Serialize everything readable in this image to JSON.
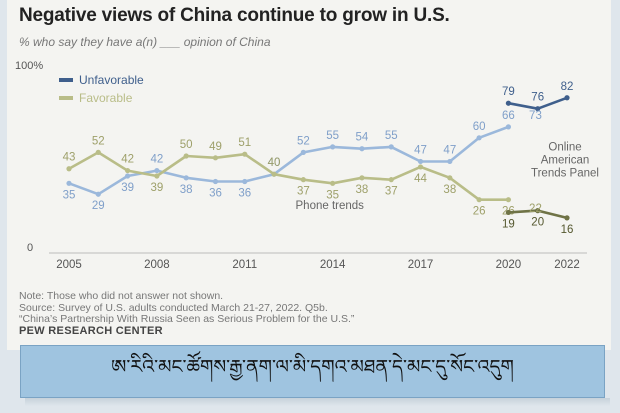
{
  "header": {
    "title": "Negative views of China continue to grow in U.S.",
    "subtitle": "% who say they have a(n) ___ opinion of China"
  },
  "chart_data": {
    "type": "line",
    "ylim": [
      0,
      100
    ],
    "y_tick_labels": [
      "100%",
      "0"
    ],
    "x_ticks": [
      2005,
      2008,
      2011,
      2014,
      2017,
      2020,
      2022
    ],
    "grid": false,
    "legend_position": "top-left",
    "colors": {
      "unfavorable": "#9bb8db",
      "unfavorable_online": "#3f5f8c",
      "favorable": "#b9bd88",
      "favorable_online": "#6f7346"
    },
    "series": [
      {
        "name": "Unfavorable",
        "x": [
          2005,
          2006,
          2007,
          2008,
          2009,
          2010,
          2011,
          2012,
          2013,
          2014,
          2015,
          2016,
          2017,
          2018,
          2019,
          2020
        ],
        "values": [
          35,
          29,
          39,
          42,
          38,
          36,
          36,
          40,
          52,
          55,
          54,
          55,
          47,
          47,
          60,
          66
        ]
      },
      {
        "name": "Favorable",
        "x": [
          2005,
          2006,
          2007,
          2008,
          2009,
          2010,
          2011,
          2012,
          2013,
          2014,
          2015,
          2016,
          2017,
          2018,
          2019,
          2020
        ],
        "values": [
          43,
          52,
          42,
          39,
          50,
          49,
          51,
          40,
          37,
          35,
          38,
          37,
          44,
          38,
          26,
          26
        ]
      },
      {
        "name": "Unfavorable (Online American Trends Panel)",
        "x": [
          2020,
          2021,
          2022
        ],
        "values": [
          79,
          76,
          82
        ]
      },
      {
        "name": "Favorable (Online American Trends Panel)",
        "x": [
          2020,
          2021,
          2022
        ],
        "values": [
          19,
          20,
          16
        ]
      }
    ],
    "overlap_labels": [
      {
        "x": 2020.5,
        "value": 73,
        "series": "Unfavorable"
      },
      {
        "x": 2020.5,
        "value": 22,
        "series": "Favorable"
      }
    ],
    "annotations": {
      "phone": "Phone trends",
      "online": [
        "Online",
        "American",
        "Trends Panel"
      ]
    },
    "legend": [
      "Unfavorable",
      "Favorable"
    ]
  },
  "footer": {
    "note": "Note: Those who did not answer not shown.",
    "source": "Source: Survey of U.S. adults conducted March 21-27, 2022. Q5b.",
    "report": "“China’s Partnership With Russia Seen as Serious Problem for the U.S.”",
    "org": "PEW RESEARCH CENTER"
  },
  "banner": {
    "text": "ཨ་རིའི་མང་ཚོགས་རྒྱ་ནག་ལ་མི་དགའ་མཐན་དེ་མང་དུ་སོང་འདུག"
  }
}
